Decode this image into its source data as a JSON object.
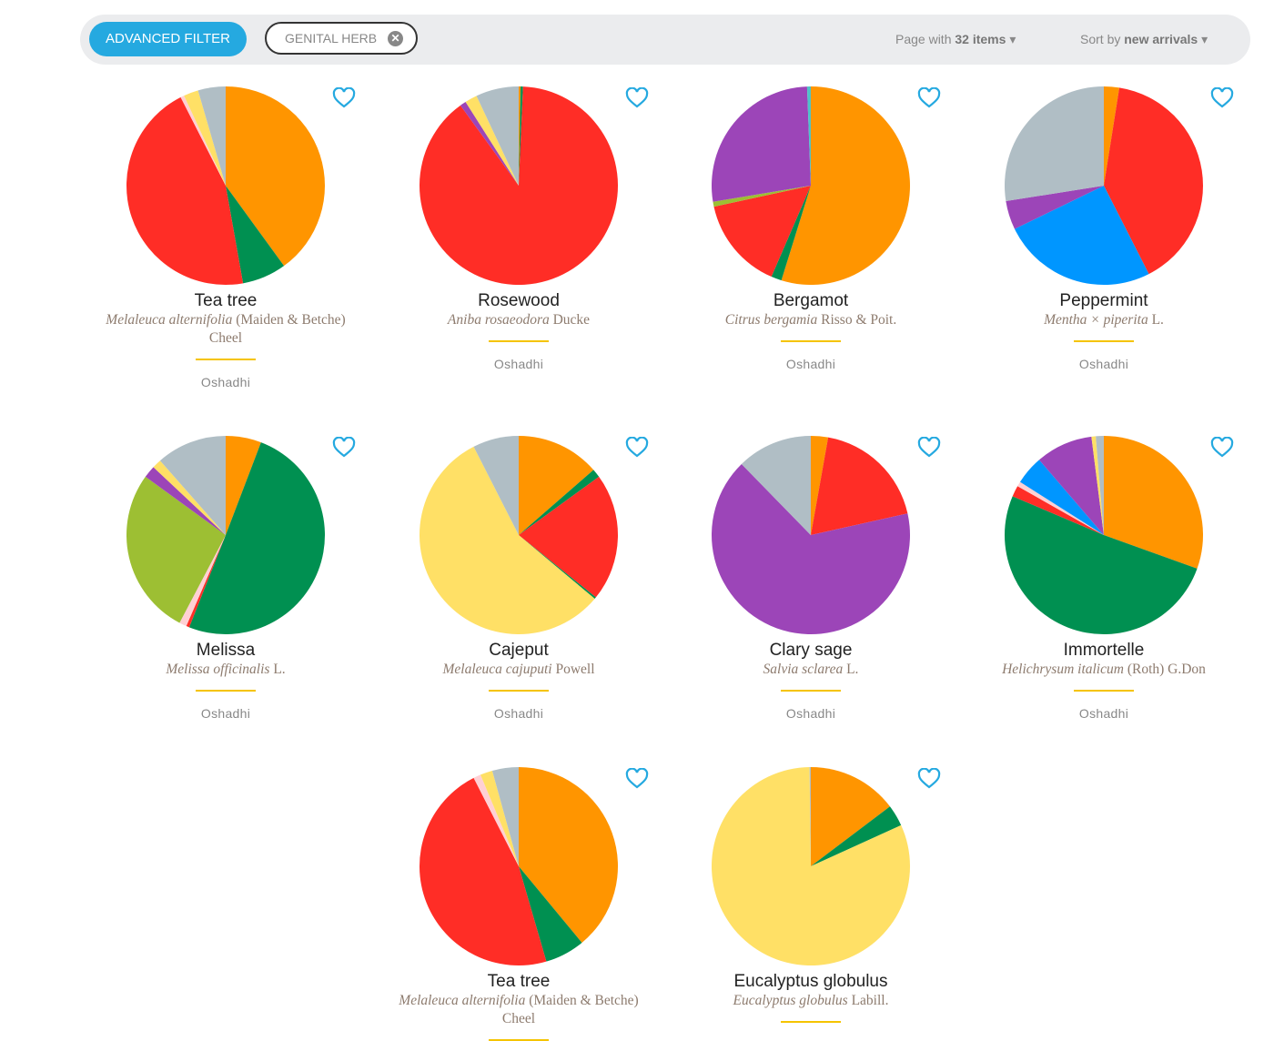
{
  "toolbar": {
    "advanced_filter": "ADVANCED FILTER",
    "active_filter_chip": "GENITAL HERB",
    "page_prefix": "Page with",
    "page_count": "32 items",
    "sort_prefix": "Sort by",
    "sort_value": "new arrivals"
  },
  "colors": {
    "orange": "#ff9500",
    "green": "#009051",
    "red": "#ff2d26",
    "pink": "#ffd0d4",
    "yellow": "#ffe066",
    "grey": "#b0bec5",
    "purple": "#9c45b8",
    "lime": "#9dbf33",
    "blue": "#0096ff",
    "teal": "#4fc3c7",
    "accent": "#25a9e0",
    "heart": "#25a9e0"
  },
  "products": [
    {
      "name": "Tea tree",
      "latin": "Melaleuca alternifolia",
      "author": "(Maiden & Betche) Cheel",
      "brand": "Oshadhi",
      "slices": [
        [
          "orange",
          0.4
        ],
        [
          "green",
          0.072
        ],
        [
          "red",
          0.453
        ],
        [
          "pink",
          0.006
        ],
        [
          "yellow",
          0.024
        ],
        [
          "grey",
          0.045
        ]
      ]
    },
    {
      "name": "Rosewood",
      "latin": "Aniba rosaeodora",
      "author": "Ducke",
      "brand": "Oshadhi",
      "slices": [
        [
          "orange",
          0.003
        ],
        [
          "green",
          0.004
        ],
        [
          "red",
          0.893
        ],
        [
          "purple",
          0.01
        ],
        [
          "yellow",
          0.02
        ],
        [
          "grey",
          0.07
        ]
      ]
    },
    {
      "name": "Bergamot",
      "latin": "Citrus bergamia",
      "author": "Risso & Poit.",
      "brand": "Oshadhi",
      "slices": [
        [
          "orange",
          0.548
        ],
        [
          "green",
          0.017
        ],
        [
          "red",
          0.151
        ],
        [
          "lime",
          0.008
        ],
        [
          "purple",
          0.27
        ],
        [
          "teal",
          0.006
        ]
      ]
    },
    {
      "name": "Peppermint",
      "latin": "Mentha × piperita",
      "author": "L.",
      "brand": "Oshadhi",
      "slices": [
        [
          "orange",
          0.025
        ],
        [
          "red",
          0.4
        ],
        [
          "blue",
          0.253
        ],
        [
          "purple",
          0.047
        ],
        [
          "grey",
          0.275
        ]
      ]
    },
    {
      "name": "Melissa",
      "latin": "Melissa officinalis",
      "author": "L.",
      "brand": "Oshadhi",
      "slices": [
        [
          "orange",
          0.058
        ],
        [
          "green",
          0.502
        ],
        [
          "red",
          0.005
        ],
        [
          "pink",
          0.012
        ],
        [
          "lime",
          0.273
        ],
        [
          "purple",
          0.02
        ],
        [
          "yellow",
          0.015
        ],
        [
          "grey",
          0.115
        ]
      ]
    },
    {
      "name": "Cajeput",
      "latin": "Melaleuca cajuputi",
      "author": "Powell",
      "brand": "Oshadhi",
      "slices": [
        [
          "orange",
          0.136
        ],
        [
          "green",
          0.014
        ],
        [
          "red",
          0.208
        ],
        [
          "green",
          0.003
        ],
        [
          "yellow",
          0.564
        ],
        [
          "grey",
          0.075
        ]
      ]
    },
    {
      "name": "Clary sage",
      "latin": "Salvia sclarea",
      "author": "L.",
      "brand": "Oshadhi",
      "slices": [
        [
          "orange",
          0.028
        ],
        [
          "red",
          0.187
        ],
        [
          "purple",
          0.662
        ],
        [
          "grey",
          0.123
        ]
      ]
    },
    {
      "name": "Immortelle",
      "latin": "Helichrysum italicum",
      "author": "(Roth) G.Don",
      "brand": "Oshadhi",
      "slices": [
        [
          "orange",
          0.305
        ],
        [
          "green",
          0.509
        ],
        [
          "red",
          0.018
        ],
        [
          "pink",
          0.008
        ],
        [
          "blue",
          0.047
        ],
        [
          "purple",
          0.093
        ],
        [
          "yellow",
          0.007
        ],
        [
          "grey",
          0.013
        ]
      ]
    },
    {
      "name": "Tea tree",
      "latin": "Melaleuca alternifolia",
      "author": "(Maiden & Betche) Cheel",
      "slices": [
        [
          "orange",
          0.39
        ],
        [
          "green",
          0.065
        ],
        [
          "red",
          0.47
        ],
        [
          "pink",
          0.012
        ],
        [
          "yellow",
          0.02
        ],
        [
          "grey",
          0.043
        ]
      ]
    },
    {
      "name": "Eucalyptus globulus",
      "latin": "Eucalyptus globulus",
      "author": "Labill.",
      "slices": [
        [
          "orange",
          0.147
        ],
        [
          "green",
          0.035
        ],
        [
          "yellow",
          0.816
        ],
        [
          "grey",
          0.002
        ]
      ]
    }
  ]
}
